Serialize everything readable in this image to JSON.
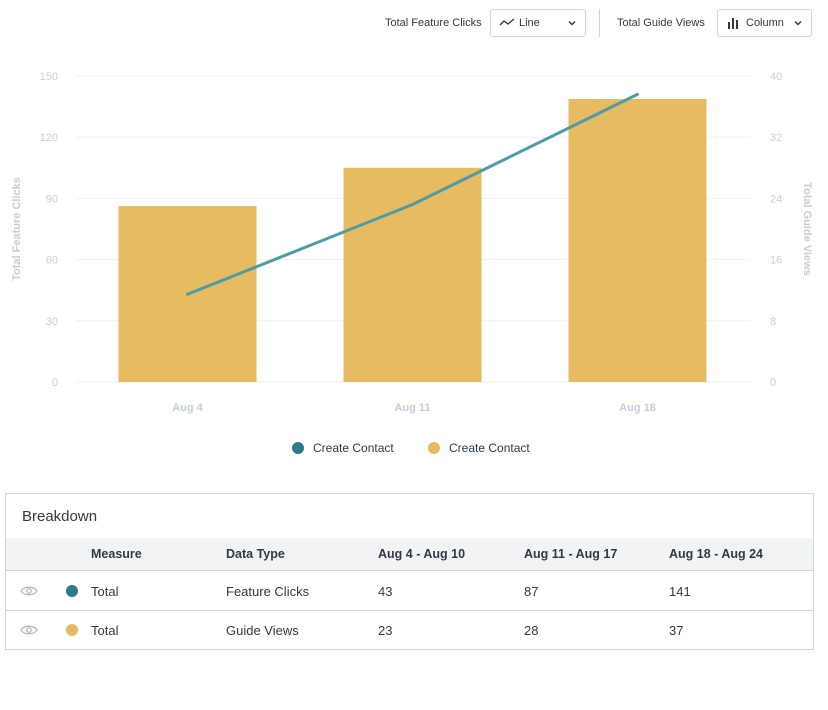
{
  "toolbar": {
    "series1_label": "Total Feature Clicks",
    "series1_type": "Line",
    "series2_label": "Total Guide Views",
    "series2_type": "Column"
  },
  "colors": {
    "line": "#4f9ca7",
    "bar": "#e6bb62",
    "legend_line": "#2e7b8f",
    "axis_text": "#c4ced6",
    "grid": "#eef1f3"
  },
  "chart_data": {
    "type": "bar",
    "categories": [
      "Aug 4",
      "Aug 11",
      "Aug 18"
    ],
    "series": [
      {
        "name": "Create Contact",
        "kind": "line",
        "axis": "left",
        "values": [
          43,
          87,
          141
        ]
      },
      {
        "name": "Create Contact",
        "kind": "column",
        "axis": "right",
        "values": [
          23,
          28,
          37
        ]
      }
    ],
    "ylabel": "Total Feature Clicks",
    "y2label": "Total Guide Views",
    "ylim": [
      0,
      150
    ],
    "y2lim": [
      0,
      40
    ],
    "yticks": [
      0,
      30,
      60,
      90,
      120,
      150
    ],
    "y2ticks": [
      0,
      8,
      16,
      24,
      32,
      40
    ],
    "grid": true,
    "legend_position": "bottom"
  },
  "legend": {
    "items": [
      {
        "label": "Create Contact",
        "color": "#2e7b8f"
      },
      {
        "label": "Create Contact",
        "color": "#e6bb62"
      }
    ]
  },
  "breakdown": {
    "title": "Breakdown",
    "headers": [
      "Measure",
      "Data Type",
      "Aug 4 - Aug 10",
      "Aug 11 - Aug 17",
      "Aug 18 - Aug 24"
    ],
    "rows": [
      {
        "color": "#2e7b8f",
        "measure": "Total",
        "type": "Feature Clicks",
        "values": [
          "43",
          "87",
          "141"
        ]
      },
      {
        "color": "#e6bb62",
        "measure": "Total",
        "type": "Guide Views",
        "values": [
          "23",
          "28",
          "37"
        ]
      }
    ]
  }
}
